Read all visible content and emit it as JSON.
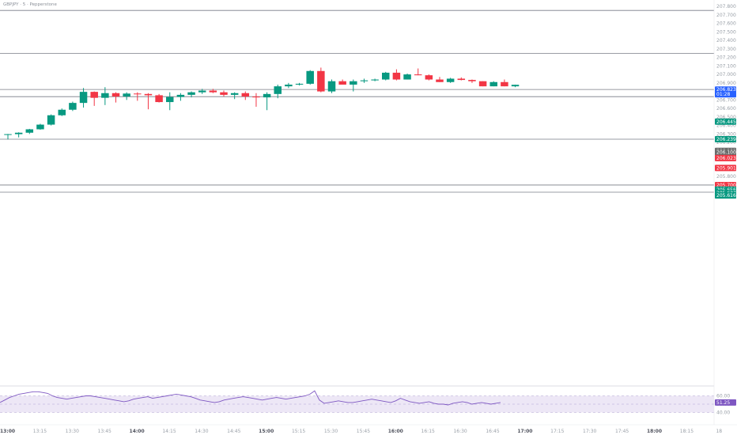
{
  "header": {
    "symbol_text": "GBPJPY · 5 · Pepperstone"
  },
  "colors": {
    "up": "#089981",
    "down": "#f23645",
    "level_line": "#787b86",
    "rsi_line": "#7e57c2",
    "rsi_band": "#ede7f6",
    "current_price_tag": "#2962ff",
    "axis_text": "#9aa0a8"
  },
  "chart_data": {
    "type": "candlestick",
    "y_ticks": [
      "207.800",
      "207.700",
      "207.600",
      "207.500",
      "207.400",
      "207.300",
      "207.200",
      "207.100",
      "207.000",
      "206.900",
      "206.800",
      "206.700",
      "206.600",
      "206.500",
      "206.400",
      "206.300",
      "206.200",
      "206.100",
      "206.000",
      "205.900",
      "205.800",
      "205.700",
      "205.600"
    ],
    "x_ticks": [
      "13:00",
      "13:15",
      "13:30",
      "13:45",
      "14:00",
      "14:15",
      "14:30",
      "14:45",
      "15:00",
      "15:15",
      "15:30",
      "15:45",
      "16:00",
      "16:15",
      "16:30",
      "16:45",
      "17:00",
      "17:15",
      "17:30",
      "17:45",
      "18:00",
      "18:15",
      "18"
    ],
    "candles": [
      {
        "o": 206.29,
        "h": 206.3,
        "l": 206.236,
        "c": 206.298
      },
      {
        "o": 206.298,
        "h": 206.32,
        "l": 206.26,
        "c": 206.315
      },
      {
        "o": 206.315,
        "h": 206.36,
        "l": 206.3,
        "c": 206.355
      },
      {
        "o": 206.355,
        "h": 206.42,
        "l": 206.35,
        "c": 206.41
      },
      {
        "o": 206.41,
        "h": 206.53,
        "l": 206.4,
        "c": 206.52
      },
      {
        "o": 206.52,
        "h": 206.6,
        "l": 206.51,
        "c": 206.585
      },
      {
        "o": 206.585,
        "h": 206.68,
        "l": 206.57,
        "c": 206.665
      },
      {
        "o": 206.665,
        "h": 206.84,
        "l": 206.61,
        "c": 206.795
      },
      {
        "o": 206.795,
        "h": 206.8,
        "l": 206.63,
        "c": 206.725
      },
      {
        "o": 206.725,
        "h": 206.85,
        "l": 206.64,
        "c": 206.78
      },
      {
        "o": 206.78,
        "h": 206.79,
        "l": 206.67,
        "c": 206.74
      },
      {
        "o": 206.74,
        "h": 206.79,
        "l": 206.7,
        "c": 206.775
      },
      {
        "o": 206.775,
        "h": 206.79,
        "l": 206.69,
        "c": 206.77
      },
      {
        "o": 206.77,
        "h": 206.78,
        "l": 206.59,
        "c": 206.755
      },
      {
        "o": 206.755,
        "h": 206.77,
        "l": 206.67,
        "c": 206.675
      },
      {
        "o": 206.675,
        "h": 206.79,
        "l": 206.58,
        "c": 206.735
      },
      {
        "o": 206.735,
        "h": 206.78,
        "l": 206.69,
        "c": 206.76
      },
      {
        "o": 206.76,
        "h": 206.8,
        "l": 206.73,
        "c": 206.79
      },
      {
        "o": 206.79,
        "h": 206.83,
        "l": 206.77,
        "c": 206.81
      },
      {
        "o": 206.81,
        "h": 206.83,
        "l": 206.78,
        "c": 206.79
      },
      {
        "o": 206.79,
        "h": 206.81,
        "l": 206.74,
        "c": 206.76
      },
      {
        "o": 206.76,
        "h": 206.79,
        "l": 206.71,
        "c": 206.78
      },
      {
        "o": 206.78,
        "h": 206.8,
        "l": 206.7,
        "c": 206.74
      },
      {
        "o": 206.74,
        "h": 206.78,
        "l": 206.62,
        "c": 206.73
      },
      {
        "o": 206.73,
        "h": 206.79,
        "l": 206.58,
        "c": 206.77
      },
      {
        "o": 206.77,
        "h": 206.88,
        "l": 206.72,
        "c": 206.86
      },
      {
        "o": 206.86,
        "h": 206.9,
        "l": 206.84,
        "c": 206.88
      },
      {
        "o": 206.88,
        "h": 206.9,
        "l": 206.87,
        "c": 206.89
      },
      {
        "o": 206.89,
        "h": 207.05,
        "l": 206.88,
        "c": 207.04
      },
      {
        "o": 207.04,
        "h": 207.08,
        "l": 206.79,
        "c": 206.8
      },
      {
        "o": 206.8,
        "h": 206.94,
        "l": 206.78,
        "c": 206.92
      },
      {
        "o": 206.92,
        "h": 206.94,
        "l": 206.88,
        "c": 206.88
      },
      {
        "o": 206.88,
        "h": 206.94,
        "l": 206.8,
        "c": 206.92
      },
      {
        "o": 206.92,
        "h": 206.95,
        "l": 206.9,
        "c": 206.93
      },
      {
        "o": 206.93,
        "h": 206.95,
        "l": 206.92,
        "c": 206.94
      },
      {
        "o": 206.94,
        "h": 207.03,
        "l": 206.93,
        "c": 207.02
      },
      {
        "o": 207.02,
        "h": 207.06,
        "l": 206.93,
        "c": 206.94
      },
      {
        "o": 206.94,
        "h": 207.01,
        "l": 206.94,
        "c": 207.0
      },
      {
        "o": 207.0,
        "h": 207.07,
        "l": 206.99,
        "c": 206.99
      },
      {
        "o": 206.99,
        "h": 207.0,
        "l": 206.93,
        "c": 206.94
      },
      {
        "o": 206.94,
        "h": 206.97,
        "l": 206.91,
        "c": 206.91
      },
      {
        "o": 206.91,
        "h": 206.96,
        "l": 206.9,
        "c": 206.95
      },
      {
        "o": 206.95,
        "h": 206.965,
        "l": 206.93,
        "c": 206.935
      },
      {
        "o": 206.935,
        "h": 206.94,
        "l": 206.9,
        "c": 206.92
      },
      {
        "o": 206.92,
        "h": 206.92,
        "l": 206.86,
        "c": 206.86
      },
      {
        "o": 206.86,
        "h": 206.92,
        "l": 206.86,
        "c": 206.91
      },
      {
        "o": 206.91,
        "h": 206.94,
        "l": 206.86,
        "c": 206.86
      },
      {
        "o": 206.86,
        "h": 206.88,
        "l": 206.85,
        "c": 206.878
      }
    ],
    "horizontal_levels": [
      207.752,
      207.247,
      206.823,
      206.739,
      206.239,
      205.7,
      205.616
    ],
    "price_tags": [
      {
        "label": "206.823",
        "sub": "01:28",
        "value": 206.822,
        "color": "#2962ff"
      },
      {
        "label": "206.445",
        "value": 206.445,
        "color": "#089981"
      },
      {
        "label": "206.239",
        "value": 206.239,
        "color": "#089981"
      },
      {
        "label": "206.102",
        "value": 206.102,
        "color": "#6b6b6b"
      },
      {
        "label": "206.100",
        "value": 206.083,
        "color": "#6b6b6b"
      },
      {
        "label": "206.023",
        "value": 206.017,
        "color": "#f23645"
      },
      {
        "label": "205.901",
        "value": 205.901,
        "color": "#f23645"
      },
      {
        "label": "205.700",
        "value": 205.7,
        "color": "#f23645"
      },
      {
        "label": "205.656",
        "value": 205.646,
        "color": "#089981"
      },
      {
        "label": "205.637",
        "value": 205.608,
        "color": "#089981"
      },
      {
        "label": "205.616",
        "value": 205.578,
        "color": "#089981"
      }
    ],
    "rsi": {
      "y_ticks": [
        "60.00",
        "50.00",
        "40.00"
      ],
      "current_label": "51.25",
      "values": [
        52,
        55,
        58,
        60,
        62,
        63,
        64,
        65,
        65,
        64,
        63,
        60,
        58,
        57,
        56,
        57,
        58,
        59,
        60,
        60,
        59,
        58,
        57,
        56,
        55,
        54,
        53,
        54,
        56,
        57,
        58,
        59,
        57,
        58,
        59,
        60,
        61,
        62,
        61,
        60,
        59,
        57,
        55,
        54,
        53,
        52,
        53,
        55,
        56,
        57,
        58,
        59,
        58,
        57,
        56,
        55,
        56,
        57,
        58,
        57,
        56,
        57,
        58,
        59,
        60,
        62,
        66,
        55,
        51,
        52,
        53,
        54,
        53,
        52,
        52,
        53,
        54,
        55,
        56,
        55,
        54,
        53,
        52,
        54,
        57,
        55,
        53,
        52,
        51,
        52,
        53,
        51,
        50,
        50,
        49,
        51,
        52,
        53,
        52,
        50,
        51,
        52,
        51,
        50,
        51,
        52
      ]
    }
  }
}
